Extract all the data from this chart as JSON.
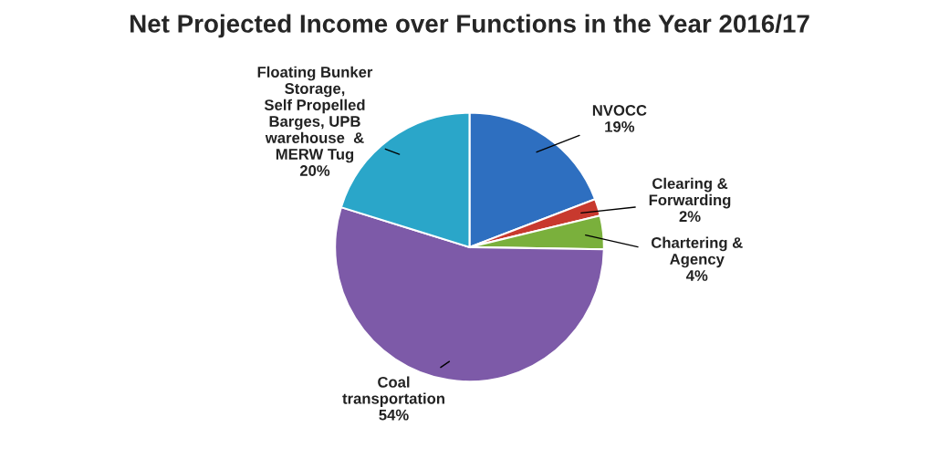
{
  "chart_data": {
    "type": "pie",
    "title": "Net Projected Income over Functions in the Year 2016/17",
    "categories": [
      "NVOCC",
      "Clearing &\nForwarding",
      "Chartering &\nAgency",
      "Coal\ntransportation",
      "Floating Bunker\nStorage,\nSelf Propelled\nBarges, UPB\nwarehouse  &\nMERW Tug"
    ],
    "values": [
      19,
      2,
      4,
      54,
      20
    ],
    "value_labels": [
      "19%",
      "2%",
      "4%",
      "54%",
      "20%"
    ],
    "colors": [
      "#2e6fc0",
      "#c8392e",
      "#7ab03c",
      "#7d5aa8",
      "#2aa6c9"
    ]
  }
}
